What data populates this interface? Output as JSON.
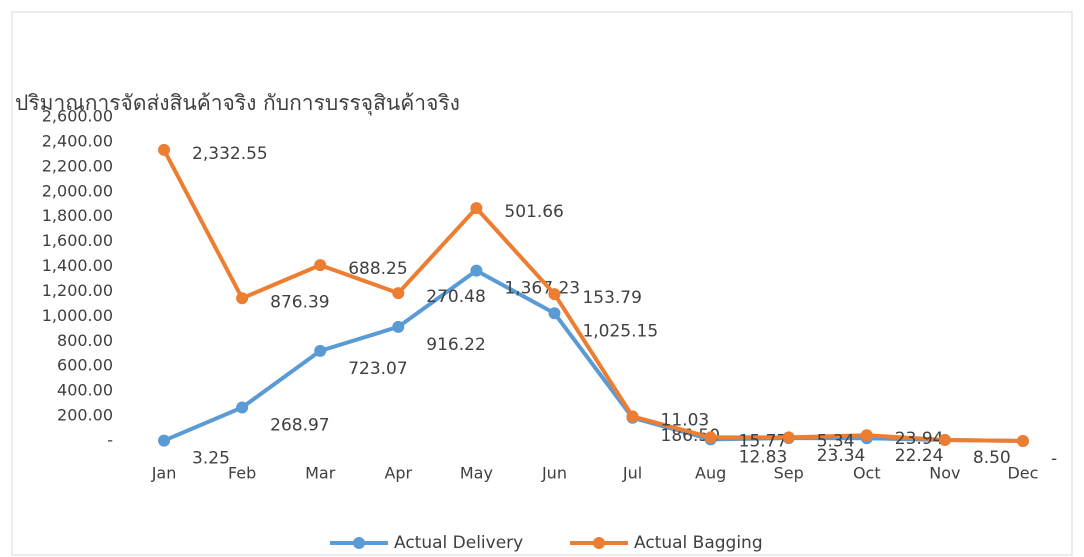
{
  "chart_data": {
    "type": "line",
    "stacked": true,
    "title": "ปริมาณการจัดส่งสินค้าจริง กับการบรรจุสินค้าจริง",
    "categories": [
      "Jan",
      "Feb",
      "Mar",
      "Apr",
      "May",
      "Jun",
      "Jul",
      "Aug",
      "Sep",
      "Oct",
      "Nov",
      "Dec"
    ],
    "series": [
      {
        "name": "Actual Delivery",
        "color": "#5b9bd5",
        "values": [
          3.25,
          268.97,
          723.07,
          916.22,
          1367.23,
          1025.15,
          186.5,
          12.83,
          23.34,
          22.24,
          8.5,
          0
        ],
        "value_labels": [
          "3.25",
          "268.97",
          "723.07",
          "916.22",
          "1,367.23",
          "1,025.15",
          "186.50",
          "12.83",
          "23.34",
          "22.24",
          "8.50",
          "-"
        ]
      },
      {
        "name": "Actual Bagging",
        "color": "#ed7d31",
        "values": [
          2332.55,
          876.39,
          688.25,
          270.48,
          501.66,
          153.79,
          11.03,
          15.77,
          5.34,
          23.94,
          0,
          0
        ],
        "value_labels": [
          "2,332.55",
          "876.39",
          "688.25",
          "270.48",
          "501.66",
          "153.79",
          "11.03",
          "15.77",
          "5.34",
          "23.94",
          null,
          null
        ]
      }
    ],
    "ylim": [
      0,
      2600
    ],
    "yticks": [
      {
        "value": 0,
        "label": "-"
      },
      {
        "value": 200,
        "label": "200.00"
      },
      {
        "value": 400,
        "label": "400.00"
      },
      {
        "value": 600,
        "label": "600.00"
      },
      {
        "value": 800,
        "label": "800.00"
      },
      {
        "value": 1000,
        "label": "1,000.00"
      },
      {
        "value": 1200,
        "label": "1,200.00"
      },
      {
        "value": 1400,
        "label": "1,400.00"
      },
      {
        "value": 1600,
        "label": "1,600.00"
      },
      {
        "value": 1800,
        "label": "1,800.00"
      },
      {
        "value": 2000,
        "label": "2,000.00"
      },
      {
        "value": 2200,
        "label": "2,200.00"
      },
      {
        "value": 2400,
        "label": "2,400.00"
      },
      {
        "value": 2600,
        "label": "2,600.00"
      }
    ],
    "grid": false,
    "legend": "bottom"
  }
}
